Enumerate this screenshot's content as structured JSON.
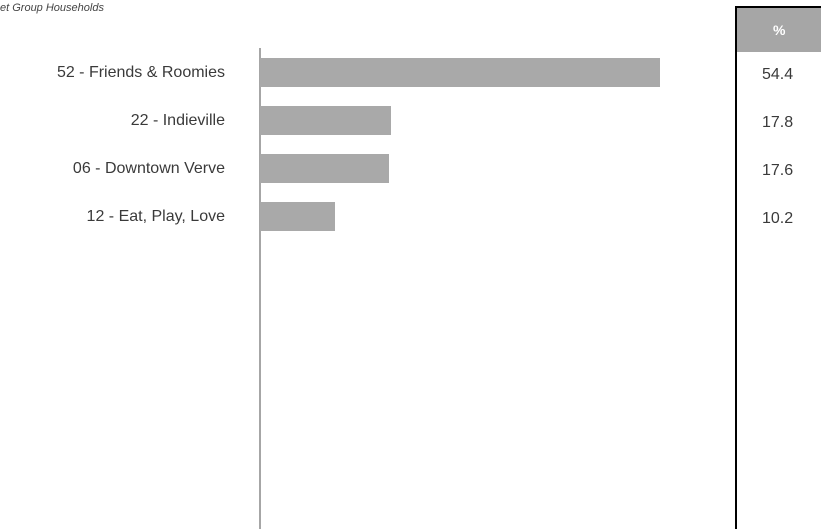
{
  "subtitle": "et Group Households",
  "table": {
    "header": "%"
  },
  "chart_data": {
    "type": "bar",
    "orientation": "horizontal",
    "categories": [
      "52 - Friends & Roomies",
      "22 - Indieville",
      "06 - Downtown Verve",
      "12 - Eat, Play, Love"
    ],
    "values": [
      54.4,
      17.8,
      17.6,
      10.2
    ],
    "value_labels": [
      "54.4",
      "17.8",
      "17.6",
      "10.2"
    ],
    "title": "",
    "xlabel": "",
    "ylabel": "",
    "xlim": [
      0,
      54.4
    ],
    "grid": false,
    "bar_color": "#a9a9a9",
    "axis_color": "#a6a6a6"
  }
}
